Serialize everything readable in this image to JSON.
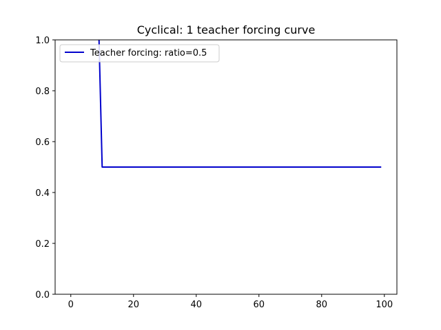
{
  "chart_data": {
    "type": "line",
    "title": "Cyclical: 1 teacher forcing curve",
    "xlabel": "",
    "ylabel": "",
    "xlim": [
      -5,
      104
    ],
    "ylim": [
      0.0,
      1.0
    ],
    "xticks": [
      0,
      20,
      40,
      60,
      80,
      100
    ],
    "xtick_labels": [
      "0",
      "20",
      "40",
      "60",
      "80",
      "100"
    ],
    "yticks": [
      0.0,
      0.2,
      0.4,
      0.6,
      0.8,
      1.0
    ],
    "ytick_labels": [
      "0.0",
      "0.2",
      "0.4",
      "0.6",
      "0.8",
      "1.0"
    ],
    "grid": false,
    "legend_position": "upper-left",
    "series": [
      {
        "name": "Teacher forcing: ratio=0.5",
        "color": "#0000cc",
        "x": [
          9,
          10,
          99
        ],
        "y": [
          1.0,
          0.5,
          0.5
        ]
      }
    ]
  }
}
